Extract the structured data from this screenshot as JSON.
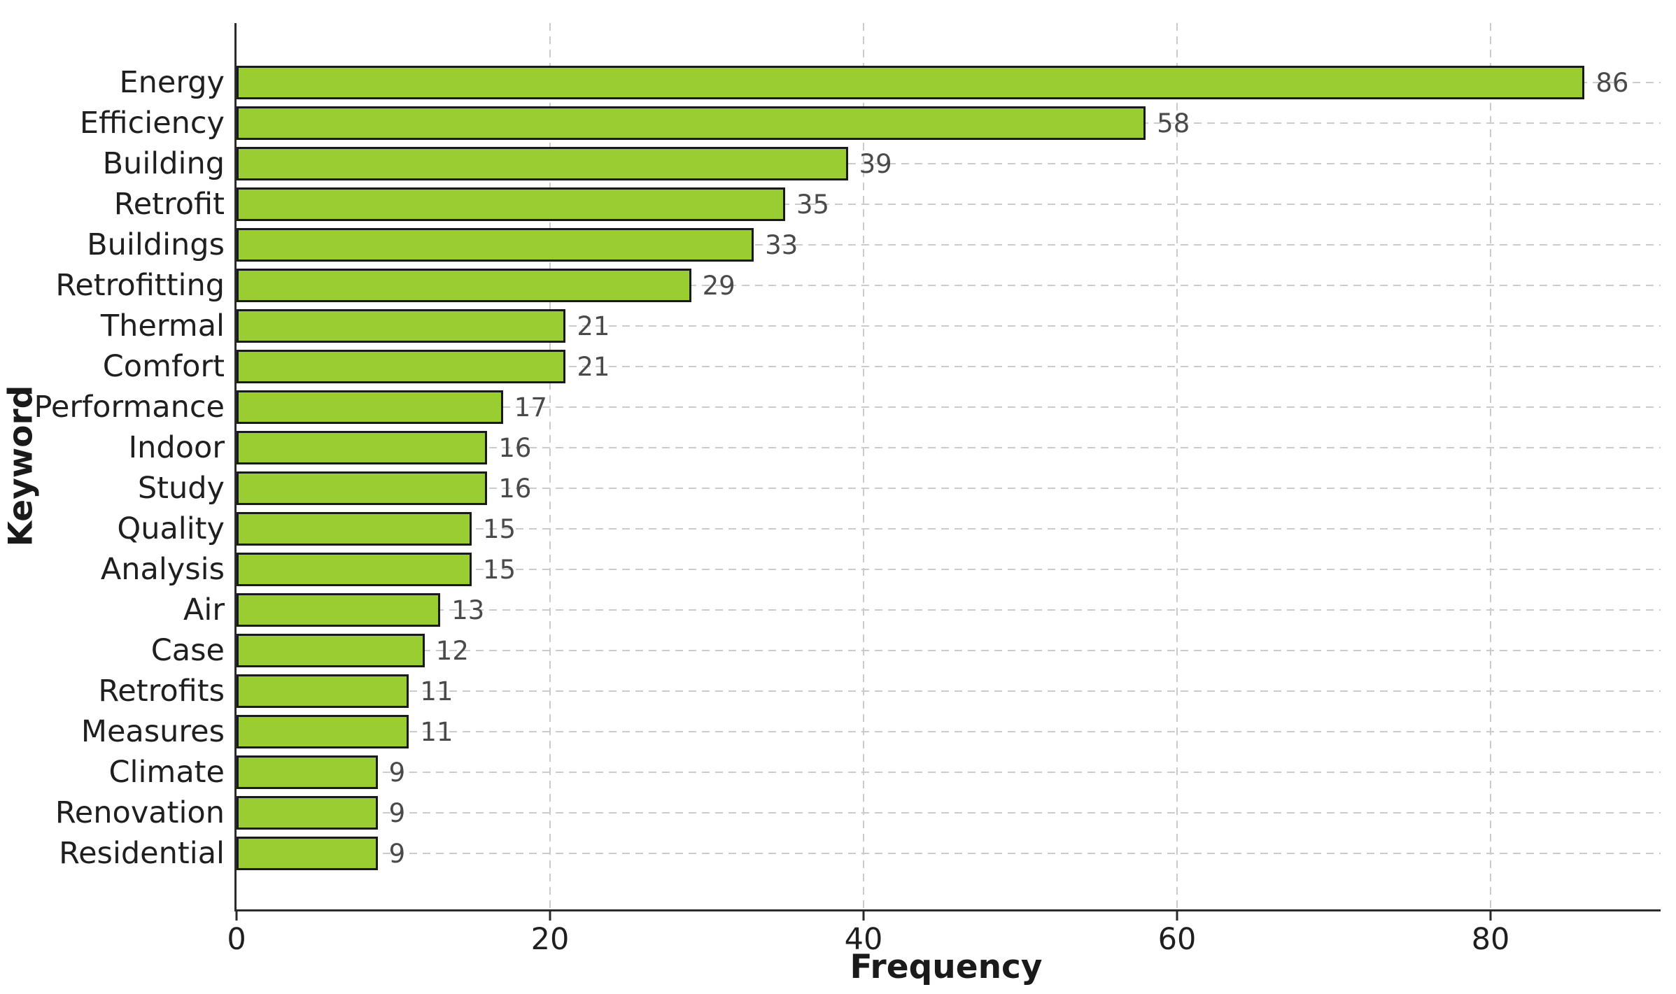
{
  "chart_data": {
    "type": "bar",
    "orientation": "horizontal",
    "title": "",
    "xlabel": "Frequency",
    "ylabel": "Keyword",
    "categories": [
      "Energy",
      "Efficiency",
      "Building",
      "Retrofit",
      "Buildings",
      "Retrofitting",
      "Thermal",
      "Comfort",
      "Performance",
      "Indoor",
      "Study",
      "Quality",
      "Analysis",
      "Air",
      "Case",
      "Retrofits",
      "Measures",
      "Climate",
      "Renovation",
      "Residential"
    ],
    "values": [
      86,
      58,
      39,
      35,
      33,
      29,
      21,
      21,
      17,
      16,
      16,
      15,
      15,
      13,
      12,
      11,
      11,
      9,
      9,
      9
    ],
    "value_labels_shown": true,
    "xlim": [
      0,
      90.85
    ],
    "xticks": [
      0,
      20,
      40,
      60,
      80
    ],
    "grid": "dashed gridlines on both axes, drawn behind bars",
    "legend": null,
    "colors": {
      "bar_fill": "#9ACD32",
      "bar_edge": "#1a1a1a",
      "grid": "#cbcbcb",
      "spine": "#2b2b2b",
      "tick_text": "#1f1f1f",
      "value_text": "#4a4a4a",
      "background": "#ffffff"
    }
  }
}
